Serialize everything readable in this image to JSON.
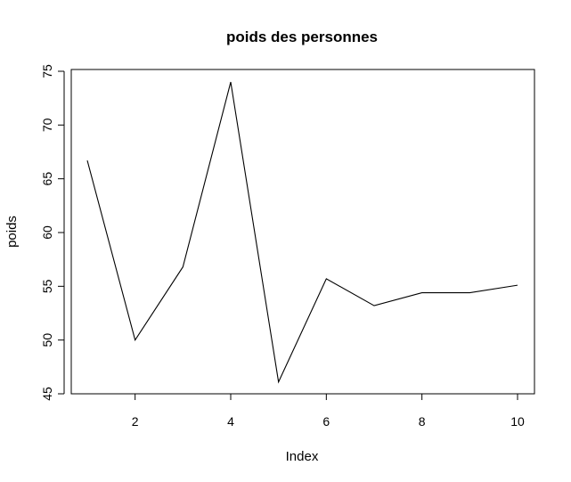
{
  "chart_data": {
    "type": "line",
    "title": "poids des personnes",
    "xlabel": "Index",
    "ylabel": "poids",
    "x": [
      1,
      2,
      3,
      4,
      5,
      6,
      7,
      8,
      9,
      10
    ],
    "series": [
      {
        "values": [
          66.7,
          50.0,
          56.8,
          74.0,
          46.1,
          55.7,
          53.2,
          54.4,
          54.4,
          55.1
        ]
      }
    ],
    "xlim": [
      1,
      10
    ],
    "ylim": [
      45,
      75
    ],
    "x_ticks": [
      2,
      4,
      6,
      8,
      10
    ],
    "y_ticks": [
      45,
      50,
      55,
      60,
      65,
      70,
      75
    ],
    "grid": false,
    "legend": "none"
  }
}
